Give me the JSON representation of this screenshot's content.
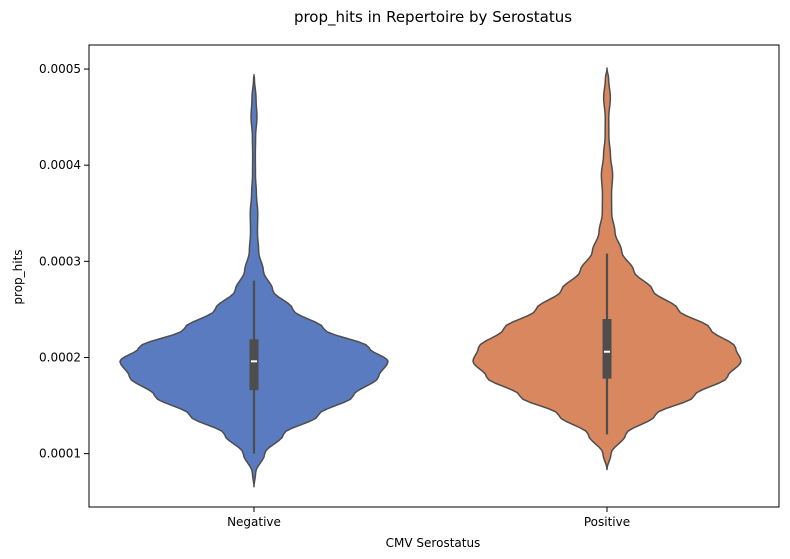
{
  "chart_data": {
    "type": "violin",
    "title": "prop_hits in Repertoire by Serostatus",
    "xlabel": "CMV Serostatus",
    "ylabel": "prop_hits",
    "ylim": [
      4.45e-05,
      0.000525
    ],
    "yticks": [
      0.0001,
      0.0002,
      0.0003,
      0.0004,
      0.0005
    ],
    "ytick_labels": [
      "0.0001",
      "0.0002",
      "0.0003",
      "0.0004",
      "0.0005"
    ],
    "grid": false,
    "legend": "none",
    "categories": [
      "Negative",
      "Positive"
    ],
    "series": [
      {
        "category": "Negative",
        "color": "#5a7bbf",
        "min": 6.55e-05,
        "max": 0.000494,
        "whisker_low": 0.0001,
        "whisker_high": 0.00028,
        "q1": 0.000166,
        "median": 0.000196,
        "q3": 0.000219,
        "density_profile": [
          [
            6.55e-05,
            0.0
          ],
          [
            8e-05,
            0.012
          ],
          [
            0.0001,
            0.08
          ],
          [
            0.00012,
            0.22
          ],
          [
            0.00014,
            0.48
          ],
          [
            0.00016,
            0.74
          ],
          [
            0.00018,
            0.93
          ],
          [
            0.000196,
            1.0
          ],
          [
            0.00021,
            0.86
          ],
          [
            0.00023,
            0.52
          ],
          [
            0.00025,
            0.29
          ],
          [
            0.00027,
            0.14
          ],
          [
            0.00029,
            0.07
          ],
          [
            0.00031,
            0.035
          ],
          [
            0.00033,
            0.026
          ],
          [
            0.00035,
            0.028
          ],
          [
            0.00037,
            0.018
          ],
          [
            0.00039,
            0.011
          ],
          [
            0.00041,
            0.01
          ],
          [
            0.00043,
            0.012
          ],
          [
            0.00045,
            0.022
          ],
          [
            0.00047,
            0.015
          ],
          [
            0.00049,
            0.003
          ],
          [
            0.000494,
            0.0
          ]
        ]
      },
      {
        "category": "Positive",
        "color": "#d8875e",
        "min": 8.35e-05,
        "max": 0.000501,
        "whisker_low": 0.00012,
        "whisker_high": 0.000308,
        "q1": 0.000178,
        "median": 0.000206,
        "q3": 0.00024,
        "density_profile": [
          [
            8.35e-05,
            0.0
          ],
          [
            0.0001,
            0.03
          ],
          [
            0.00012,
            0.14
          ],
          [
            0.00014,
            0.36
          ],
          [
            0.00016,
            0.65
          ],
          [
            0.00018,
            0.9
          ],
          [
            0.000196,
            1.0
          ],
          [
            0.00021,
            0.96
          ],
          [
            0.00023,
            0.77
          ],
          [
            0.00025,
            0.53
          ],
          [
            0.00027,
            0.34
          ],
          [
            0.00029,
            0.2
          ],
          [
            0.00031,
            0.11
          ],
          [
            0.00033,
            0.06
          ],
          [
            0.00035,
            0.035
          ],
          [
            0.00037,
            0.034
          ],
          [
            0.00039,
            0.042
          ],
          [
            0.00041,
            0.026
          ],
          [
            0.00043,
            0.014
          ],
          [
            0.00045,
            0.013
          ],
          [
            0.00047,
            0.025
          ],
          [
            0.00049,
            0.012
          ],
          [
            0.000501,
            0.0
          ]
        ]
      }
    ],
    "colors": {
      "axis": "#000000",
      "outline": "#4d4d4d",
      "box": "#4d4d4d",
      "median": "#ffffff"
    }
  }
}
